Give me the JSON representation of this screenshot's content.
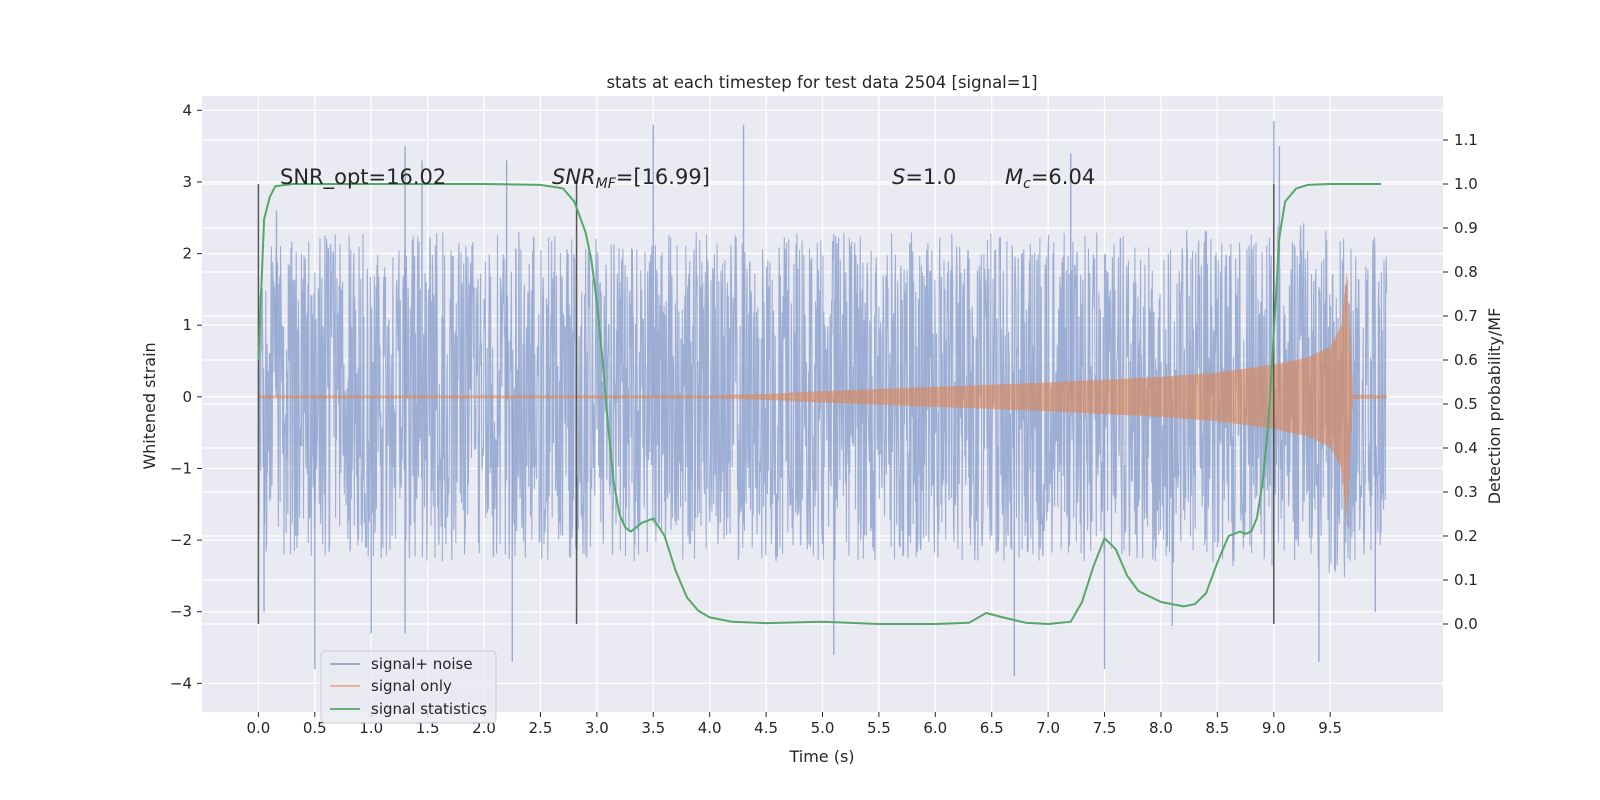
{
  "chart_data": {
    "type": "line",
    "title": "stats at each timestep for test data 2504 [signal=1]",
    "xlabel": "Time (s)",
    "ylabel": "Whitened strain",
    "ylabel_right": "Detection probability/MF",
    "xlim": [
      -0.5,
      10.5
    ],
    "ylim": [
      -4.4,
      4.2
    ],
    "ylim_right": [
      -0.2,
      1.2
    ],
    "x_ticks": [
      "0.0",
      "0.5",
      "1.0",
      "1.5",
      "2.0",
      "2.5",
      "3.0",
      "3.5",
      "4.0",
      "4.5",
      "5.0",
      "5.5",
      "6.0",
      "6.5",
      "7.0",
      "7.5",
      "8.0",
      "8.5",
      "9.0",
      "9.5"
    ],
    "y_ticks": [
      "-4",
      "-3",
      "-2",
      "-1",
      "0",
      "1",
      "2",
      "3",
      "4"
    ],
    "y_ticks_right": [
      "0.0",
      "0.1",
      "0.2",
      "0.3",
      "0.4",
      "0.5",
      "0.6",
      "0.7",
      "0.8",
      "0.9",
      "1.0",
      "1.1"
    ],
    "grid": true,
    "legend_position": "lower-left",
    "annotations": {
      "snr_opt": "SNR_opt=16.02",
      "snr_mf_main": "SNR",
      "snr_mf_sub": "MF",
      "snr_mf_value": "=[16.99]",
      "s_symbol": "S",
      "s_value": "=1.0",
      "mc_symbol": "M",
      "mc_sub": "c",
      "mc_value": "=6.04"
    },
    "vertical_markers": [
      0.0,
      2.82,
      9.0
    ],
    "series": [
      {
        "name": "signal+ noise",
        "color": "#8fa3cf",
        "envelope": {
          "x": [
            0.0,
            1.0,
            2.0,
            3.0,
            4.0,
            5.0,
            6.0,
            7.0,
            8.0,
            9.0,
            9.5,
            9.65,
            9.7,
            10.0
          ],
          "upper": [
            2.2,
            2.3,
            2.3,
            2.3,
            2.3,
            2.3,
            2.3,
            2.3,
            2.3,
            2.4,
            2.5,
            2.6,
            2.3,
            2.2
          ],
          "lower": [
            -2.2,
            -2.3,
            -2.3,
            -2.3,
            -2.3,
            -2.3,
            -2.3,
            -2.3,
            -2.3,
            -2.4,
            -2.5,
            -2.6,
            -2.3,
            -2.2
          ]
        },
        "peaks": [
          [
            0.16,
            2.6
          ],
          [
            1.3,
            3.5
          ],
          [
            1.45,
            3.3
          ],
          [
            2.2,
            3.3
          ],
          [
            3.5,
            3.8
          ],
          [
            4.3,
            3.8
          ],
          [
            7.2,
            3.4
          ],
          [
            9.0,
            3.85
          ],
          [
            9.05,
            3.5
          ],
          [
            0.05,
            -3.0
          ],
          [
            0.5,
            -3.8
          ],
          [
            1.0,
            -3.3
          ],
          [
            1.3,
            -3.3
          ],
          [
            2.25,
            -3.7
          ],
          [
            5.1,
            -3.6
          ],
          [
            6.7,
            -3.9
          ],
          [
            7.5,
            -3.8
          ],
          [
            8.1,
            -3.2
          ],
          [
            9.4,
            -3.7
          ],
          [
            9.9,
            -3.0
          ]
        ]
      },
      {
        "name": "signal only",
        "color": "#dd8452",
        "envelope": {
          "x": [
            0.0,
            2.0,
            4.0,
            4.5,
            5.0,
            5.5,
            6.0,
            6.5,
            7.0,
            7.5,
            8.0,
            8.5,
            9.0,
            9.3,
            9.5,
            9.6,
            9.65,
            9.7,
            10.0
          ],
          "upper": [
            0.02,
            0.02,
            0.02,
            0.04,
            0.08,
            0.11,
            0.14,
            0.17,
            0.2,
            0.24,
            0.28,
            0.34,
            0.45,
            0.55,
            0.7,
            1.0,
            1.8,
            0.03,
            0.02
          ],
          "lower": [
            -0.02,
            -0.02,
            -0.02,
            -0.04,
            -0.08,
            -0.11,
            -0.14,
            -0.17,
            -0.2,
            -0.24,
            -0.28,
            -0.34,
            -0.45,
            -0.55,
            -0.7,
            -1.0,
            -1.8,
            -0.03,
            -0.02
          ]
        }
      },
      {
        "name": "signal statistics",
        "color": "#55a868",
        "x": [
          0.0,
          0.05,
          0.1,
          0.15,
          0.3,
          0.6,
          1.0,
          2.0,
          2.5,
          2.7,
          2.8,
          2.9,
          2.95,
          3.0,
          3.05,
          3.1,
          3.15,
          3.2,
          3.25,
          3.3,
          3.4,
          3.5,
          3.6,
          3.7,
          3.8,
          3.9,
          4.0,
          4.2,
          4.5,
          5.0,
          5.5,
          6.0,
          6.3,
          6.45,
          6.6,
          6.8,
          7.0,
          7.2,
          7.3,
          7.4,
          7.5,
          7.6,
          7.7,
          7.8,
          8.0,
          8.2,
          8.3,
          8.4,
          8.5,
          8.6,
          8.7,
          8.75,
          8.8,
          8.85,
          8.9,
          8.95,
          9.0,
          9.05,
          9.1,
          9.2,
          9.3,
          9.5,
          9.95
        ],
        "values": [
          0.6,
          0.92,
          0.97,
          0.995,
          1.0,
          1.0,
          1.0,
          1.0,
          0.998,
          0.99,
          0.96,
          0.89,
          0.83,
          0.73,
          0.6,
          0.45,
          0.32,
          0.25,
          0.22,
          0.21,
          0.23,
          0.24,
          0.2,
          0.12,
          0.06,
          0.03,
          0.015,
          0.005,
          0.002,
          0.005,
          0.0,
          0.0,
          0.003,
          0.025,
          0.015,
          0.003,
          0.0,
          0.005,
          0.05,
          0.13,
          0.195,
          0.17,
          0.11,
          0.075,
          0.05,
          0.04,
          0.045,
          0.07,
          0.14,
          0.2,
          0.21,
          0.205,
          0.21,
          0.24,
          0.32,
          0.45,
          0.66,
          0.88,
          0.96,
          0.99,
          0.998,
          1.0,
          1.0
        ]
      }
    ]
  }
}
